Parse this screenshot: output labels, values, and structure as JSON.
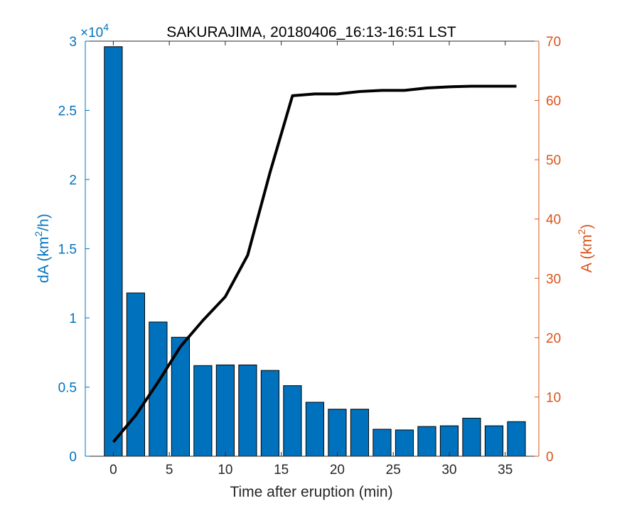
{
  "chart_data": {
    "type": "bar",
    "title": "SAKURAJIMA, 20180406_16:13-16:51 LST",
    "xlabel": "Time after eruption (min)",
    "xlim": [
      -2.5,
      38
    ],
    "xticks": [
      "0",
      "5",
      "10",
      "15",
      "20",
      "25",
      "30",
      "35"
    ],
    "colors": {
      "bars": "#0072bd",
      "left_axis": "#0072bd",
      "right_axis": "#d95319",
      "line": "#000000"
    },
    "left_axis": {
      "label_prefix": "dA (km",
      "label_sup": "2",
      "label_suffix": "/h)",
      "exponent_base": "×10",
      "exponent_power": "4",
      "ylim": [
        0,
        3
      ],
      "ticks": [
        "0",
        "0.5",
        "1",
        "1.5",
        "2",
        "2.5",
        "3"
      ]
    },
    "right_axis": {
      "label_prefix": "A (km",
      "label_sup": "2",
      "label_suffix": ")",
      "ylim": [
        0,
        70
      ],
      "ticks": [
        "0",
        "10",
        "20",
        "30",
        "40",
        "50",
        "60",
        "70"
      ]
    },
    "series": [
      {
        "type": "bar",
        "axis": "left",
        "x": [
          0,
          2,
          4,
          6,
          8,
          10,
          12,
          14,
          16,
          18,
          20,
          22,
          24,
          26,
          28,
          30,
          32,
          34,
          36
        ],
        "values": [
          29600,
          11800,
          9700,
          8600,
          6550,
          6600,
          6600,
          6200,
          5100,
          3900,
          3400,
          3400,
          1950,
          1900,
          2150,
          2200,
          2750,
          2200,
          2500
        ]
      },
      {
        "type": "line",
        "axis": "right",
        "x": [
          0,
          2,
          4,
          6,
          8,
          10,
          12,
          14,
          16,
          18,
          20,
          22,
          24,
          26,
          28,
          30,
          32,
          34,
          36
        ],
        "values": [
          2.4,
          6.9,
          12.5,
          18.5,
          22.9,
          26.9,
          33.9,
          47.9,
          60.8,
          61.1,
          61.1,
          61.5,
          61.7,
          61.7,
          62.1,
          62.3,
          62.4,
          62.4,
          62.4
        ]
      }
    ]
  }
}
